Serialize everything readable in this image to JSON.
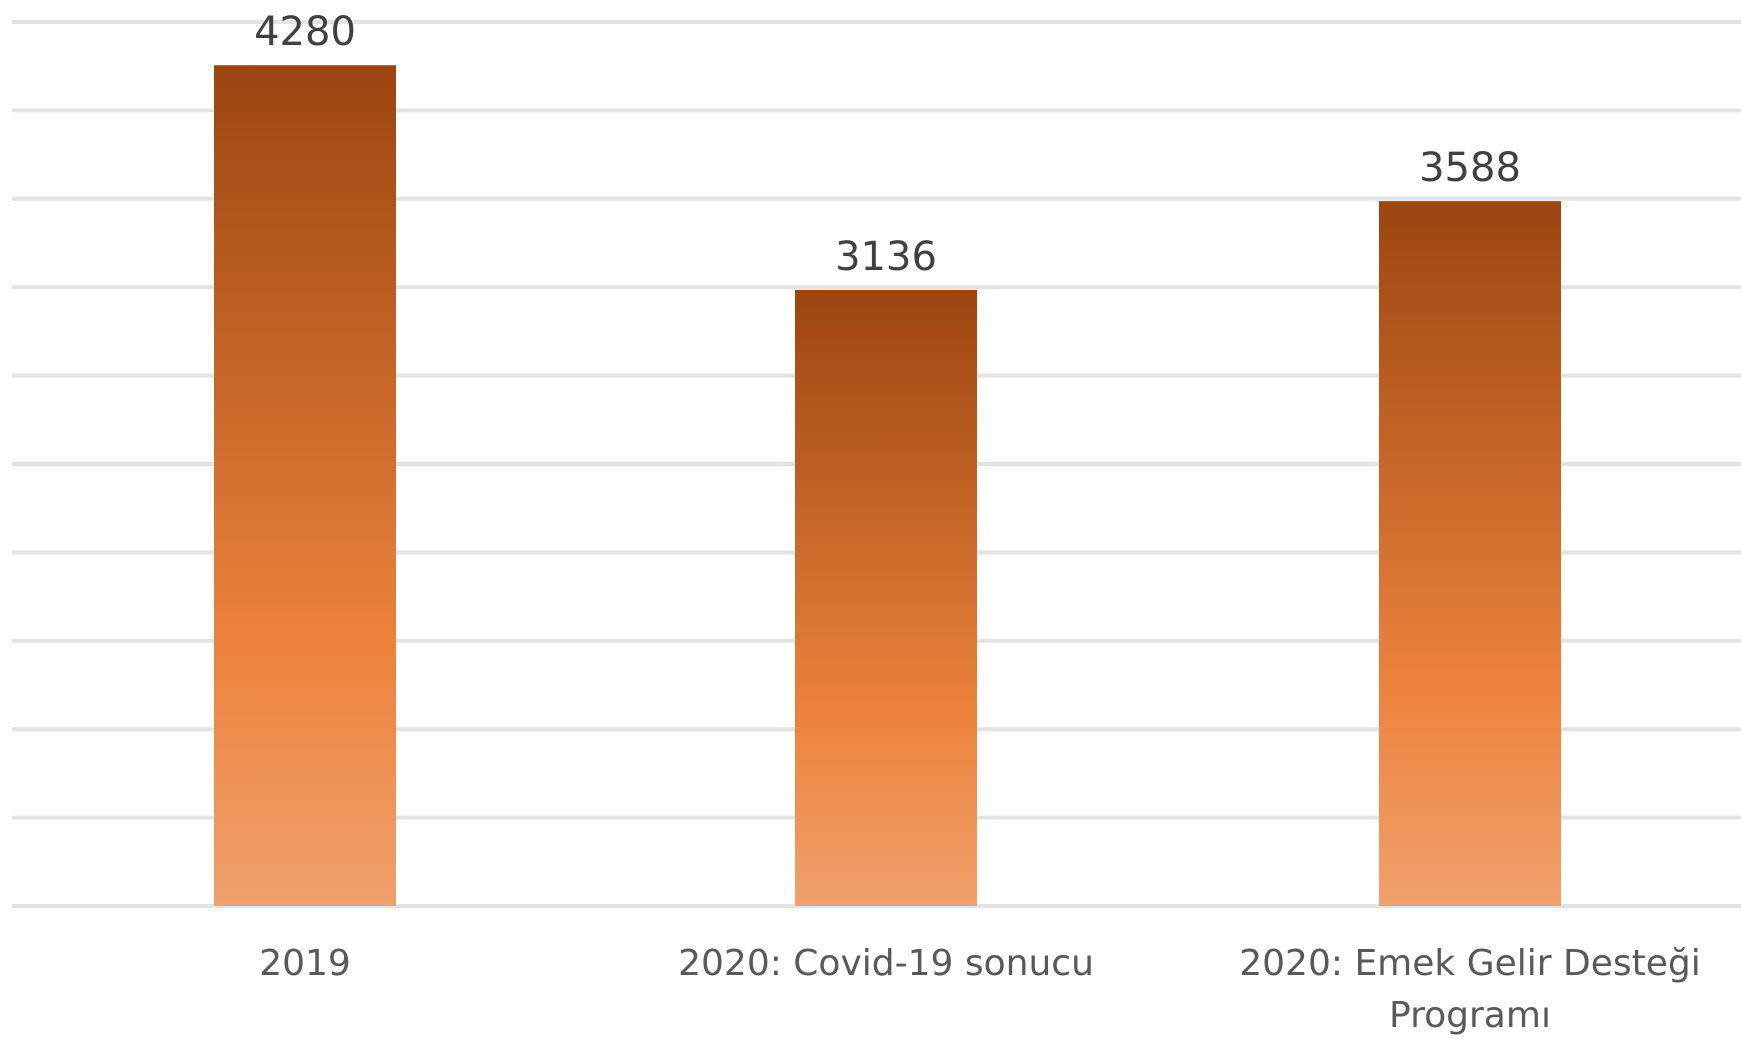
{
  "chart_data": {
    "type": "bar",
    "categories": [
      "2019",
      "2020: Covid-19 sonucu",
      "2020: Emek Gelir Desteği Programı"
    ],
    "category_label_lines": [
      [
        "2019"
      ],
      [
        "2020: Covid-19 sonucu"
      ],
      [
        "2020: Emek Gelir Desteği",
        "Programı"
      ]
    ],
    "values": [
      4280,
      3136,
      3588
    ],
    "data_labels": [
      "4280",
      "3136",
      "3588"
    ],
    "ylim": [
      0,
      4500
    ],
    "grid": true,
    "bar_gradient": [
      "#9c4510",
      "#ed843d",
      "#f0a06d"
    ],
    "grid_color": "#e3e3e3"
  }
}
